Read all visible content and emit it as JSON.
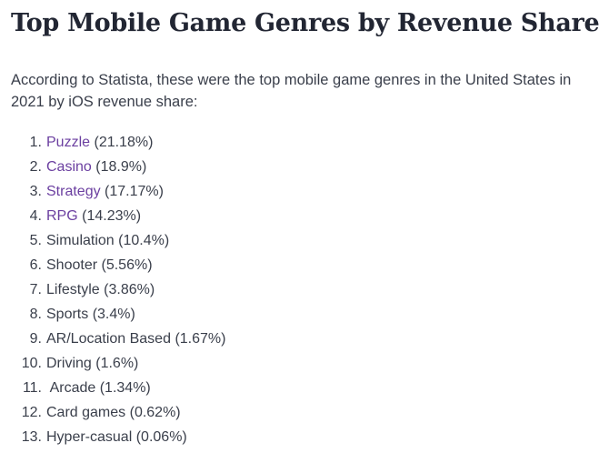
{
  "article": {
    "title": "Top Mobile Game Genres by Revenue Share",
    "intro": "According to Statista, these were the top mobile game genres in the United States in 2021 by iOS revenue share:",
    "link_color": "#6b3fa0",
    "items": [
      {
        "num": "1.",
        "name": "Puzzle",
        "share": "(21.18%)",
        "linked": true
      },
      {
        "num": "2.",
        "name": "Casino",
        "share": "(18.9%)",
        "linked": true
      },
      {
        "num": "3.",
        "name": "Strategy",
        "share": "(17.17%)",
        "linked": true
      },
      {
        "num": "4.",
        "name": "RPG",
        "share": "(14.23%)",
        "linked": true
      },
      {
        "num": "5.",
        "name": "Simulation",
        "share": "(10.4%)",
        "linked": false
      },
      {
        "num": "6.",
        "name": "Shooter",
        "share": "(5.56%)",
        "linked": false
      },
      {
        "num": "7.",
        "name": "Lifestyle",
        "share": "(3.86%)",
        "linked": false
      },
      {
        "num": "8.",
        "name": "Sports",
        "share": "(3.4%)",
        "linked": false
      },
      {
        "num": "9.",
        "name": "AR/Location Based",
        "share": "(1.67%)",
        "linked": false
      },
      {
        "num": "10.",
        "name": "Driving",
        "share": "(1.6%)",
        "linked": false
      },
      {
        "num": "11.",
        "name": " Arcade",
        "share": "(1.34%)",
        "linked": false
      },
      {
        "num": "12.",
        "name": "Card games",
        "share": "(0.62%)",
        "linked": false
      },
      {
        "num": "13.",
        "name": "Hyper-casual",
        "share": "(0.06%)",
        "linked": false
      }
    ]
  }
}
